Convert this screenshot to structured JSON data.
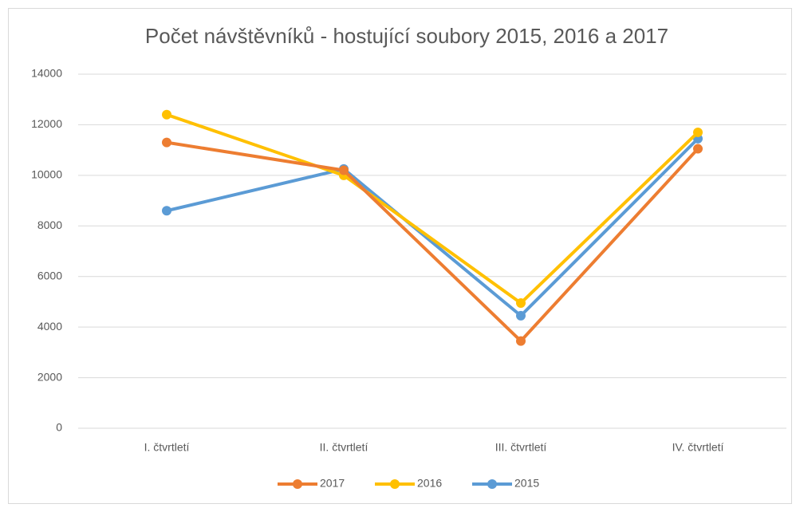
{
  "chart_data": {
    "type": "line",
    "title": "Počet návštěvníků - hostující soubory 2015, 2016 a 2017",
    "categories": [
      "I. čtvrtletí",
      "II. čtvrtletí",
      "III. čtvrtletí",
      "IV. čtvrtletí"
    ],
    "series": [
      {
        "name": "2017",
        "color": "#ed7d31",
        "values": [
          11300,
          10200,
          3450,
          11050
        ]
      },
      {
        "name": "2016",
        "color": "#ffc000",
        "values": [
          12400,
          10000,
          4950,
          11700
        ]
      },
      {
        "name": "2015",
        "color": "#5b9bd5",
        "values": [
          8600,
          10250,
          4450,
          11450
        ]
      }
    ],
    "ylim": [
      0,
      14000
    ],
    "yticks": [
      0,
      2000,
      4000,
      6000,
      8000,
      10000,
      12000,
      14000
    ],
    "grid": true,
    "legend": "bottom"
  }
}
